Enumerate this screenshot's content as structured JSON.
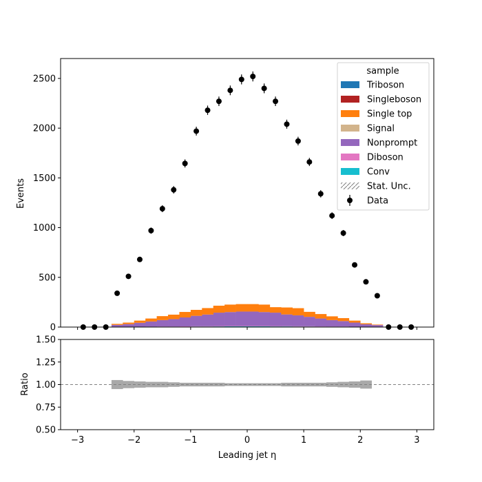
{
  "chart_data": [
    {
      "type": "bar",
      "subtype": "stacked-histogram-with-data-points",
      "ylabel": "Events",
      "xlim": [
        -3.3,
        3.3
      ],
      "ylim": [
        0,
        2700
      ],
      "yticks": [
        0,
        500,
        1000,
        1500,
        2000,
        2500
      ],
      "legend": {
        "title": "sample",
        "placement": "top-right",
        "entries": [
          "Triboson",
          "Singleboson",
          "Single top",
          "Signal",
          "Nonprompt",
          "Diboson",
          "Conv",
          "Stat. Unc.",
          "Data"
        ]
      },
      "colors": {
        "Triboson": "#1f77b4",
        "Singleboson": "#b22222",
        "Single top": "#ff7f0e",
        "Signal": "#d2b48c",
        "Nonprompt": "#9467bd",
        "Diboson": "#e377c2",
        "Conv": "#17becf",
        "Data": "#000000",
        "Stat. Unc.": "#808080"
      },
      "bin_edges": [
        -2.4,
        -2.2,
        -2.0,
        -1.8,
        -1.6,
        -1.4,
        -1.2,
        -1.0,
        -0.8,
        -0.6,
        -0.4,
        -0.2,
        0.0,
        0.2,
        0.4,
        0.6,
        0.8,
        1.0,
        1.2,
        1.4,
        1.6,
        1.8,
        2.0,
        2.2,
        2.4
      ],
      "series": [
        {
          "name": "Conv",
          "values": [
            1,
            1,
            2,
            2,
            3,
            3,
            4,
            5,
            5,
            6,
            7,
            7,
            7,
            7,
            6,
            6,
            5,
            5,
            4,
            3,
            3,
            2,
            2,
            1
          ]
        },
        {
          "name": "Diboson",
          "values": [
            1,
            1,
            1,
            2,
            2,
            2,
            3,
            3,
            3,
            4,
            4,
            4,
            4,
            4,
            4,
            3,
            3,
            3,
            2,
            2,
            2,
            1,
            1,
            1
          ]
        },
        {
          "name": "Nonprompt",
          "values": [
            20,
            28,
            40,
            52,
            65,
            75,
            90,
            105,
            118,
            135,
            140,
            145,
            145,
            140,
            135,
            118,
            110,
            95,
            80,
            65,
            55,
            42,
            25,
            18
          ]
        },
        {
          "name": "Signal",
          "values": [
            0,
            0,
            0,
            0,
            0,
            0,
            0,
            0,
            0,
            0,
            0,
            0,
            0,
            0,
            0,
            0,
            0,
            0,
            0,
            0,
            0,
            0,
            0,
            0
          ]
        },
        {
          "name": "Single top",
          "values": [
            10,
            15,
            22,
            30,
            40,
            45,
            55,
            60,
            65,
            70,
            75,
            75,
            75,
            75,
            55,
            70,
            72,
            50,
            45,
            38,
            30,
            20,
            10,
            5
          ]
        },
        {
          "name": "Singleboson",
          "values": [
            0,
            0,
            0,
            0,
            0,
            0,
            0,
            0,
            0,
            0,
            0,
            0,
            0,
            0,
            0,
            0,
            0,
            0,
            0,
            0,
            0,
            0,
            0,
            0
          ]
        },
        {
          "name": "Triboson",
          "values": [
            0,
            0,
            0,
            0,
            0,
            0,
            0,
            0,
            0,
            0,
            0,
            0,
            0,
            0,
            0,
            0,
            0,
            0,
            0,
            0,
            0,
            0,
            0,
            0
          ]
        }
      ],
      "data_points": {
        "name": "Data",
        "x": [
          -2.9,
          -2.7,
          -2.5,
          -2.3,
          -2.1,
          -1.9,
          -1.7,
          -1.5,
          -1.3,
          -1.1,
          -0.9,
          -0.7,
          -0.5,
          -0.3,
          -0.1,
          0.1,
          0.3,
          0.5,
          0.7,
          0.9,
          1.1,
          1.3,
          1.5,
          1.7,
          1.9,
          2.1,
          2.3,
          2.5,
          2.7,
          2.9
        ],
        "y": [
          0,
          0,
          0,
          340,
          510,
          680,
          970,
          1190,
          1380,
          1645,
          1970,
          2180,
          2270,
          2380,
          2490,
          2520,
          2400,
          2270,
          2040,
          1870,
          1660,
          1340,
          1120,
          945,
          625,
          455,
          315,
          0,
          0,
          0
        ]
      }
    },
    {
      "type": "line",
      "subtype": "ratio-panel",
      "xlabel": "Leading jet  η",
      "ylabel": "Ratio",
      "xlim": [
        -3.3,
        3.3
      ],
      "ylim": [
        0.5,
        1.5
      ],
      "yticks": [
        "0.50",
        "0.75",
        "1.00",
        "1.25",
        "1.50"
      ],
      "xticks": [
        "−3",
        "−2",
        "−1",
        "0",
        "1",
        "2",
        "3"
      ],
      "reference_line": 1.0,
      "uncertainty_band": {
        "bin_edges": [
          -2.4,
          -2.2,
          -2.0,
          -1.8,
          -1.6,
          -1.4,
          -1.2,
          -1.0,
          -0.8,
          -0.6,
          -0.4,
          -0.2,
          0.0,
          0.2,
          0.4,
          0.6,
          0.8,
          1.0,
          1.2,
          1.4,
          1.6,
          1.8,
          2.0,
          2.2,
          2.4
        ],
        "half_width": [
          0.05,
          0.04,
          0.035,
          0.03,
          0.03,
          0.025,
          0.02,
          0.02,
          0.02,
          0.02,
          0.015,
          0.015,
          0.015,
          0.015,
          0.015,
          0.02,
          0.02,
          0.02,
          0.02,
          0.025,
          0.03,
          0.035,
          0.045,
          0.0
        ]
      }
    }
  ]
}
